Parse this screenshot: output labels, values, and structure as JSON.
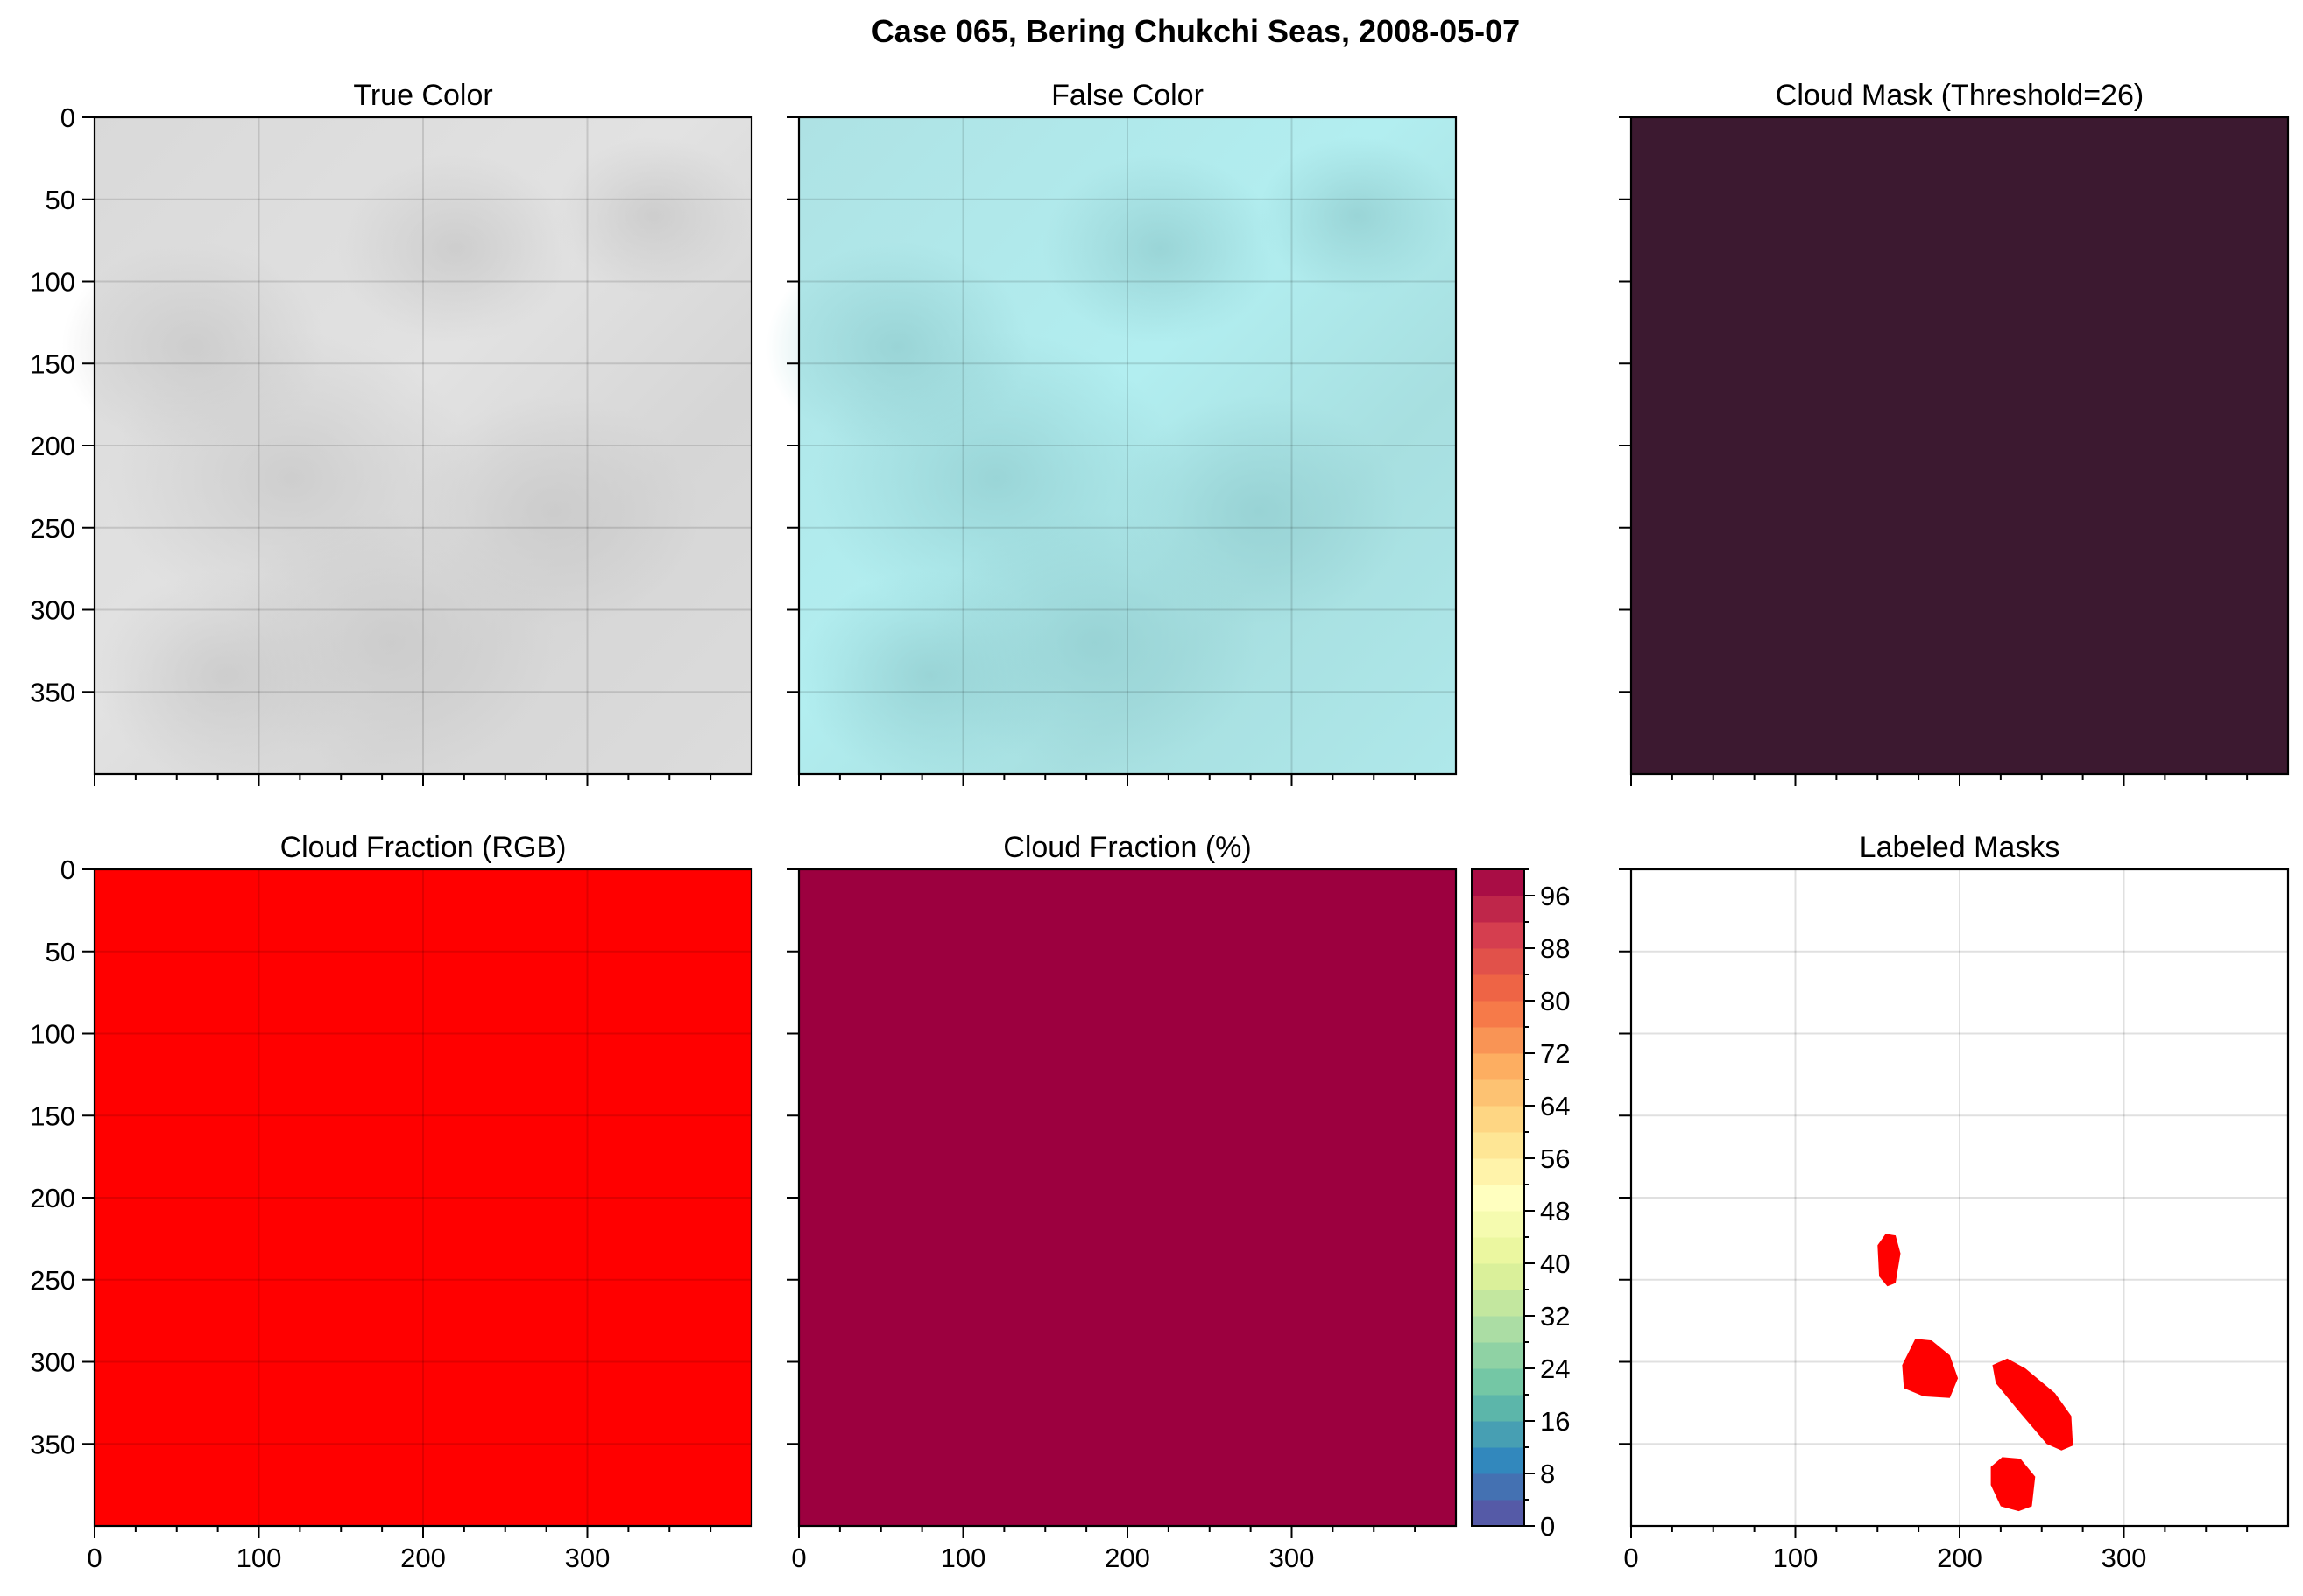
{
  "figure": {
    "suptitle": "Case 065, Bering Chukchi Seas, 2008-05-07"
  },
  "colors": {
    "cloud_mask_fill": "#3c1930",
    "cloud_fraction_rgb_fill": "#ff0000",
    "cloud_fraction_pct_fill": "#9c003f",
    "label_mask_fill": "#ff0000",
    "frame": "#000000"
  },
  "chart_data": [
    {
      "type": "heatmap",
      "panel": "true-color",
      "title": "True Color",
      "image": "satellite true color composite, light grey cloud cover",
      "xlim": [
        0,
        400
      ],
      "ylim": [
        400,
        0
      ],
      "xticks": [],
      "yticks": [
        0,
        50,
        100,
        150,
        200,
        250,
        300,
        350
      ],
      "grid": true
    },
    {
      "type": "heatmap",
      "panel": "false-color",
      "title": "False Color",
      "image": "satellite false color composite, pale cyan",
      "xlim": [
        0,
        400
      ],
      "ylim": [
        400,
        0
      ],
      "xticks": [],
      "yticks": [],
      "grid": true
    },
    {
      "type": "heatmap",
      "panel": "cloud-mask",
      "title": "Cloud Mask (Threshold=26)",
      "uniform_color": "#3c1930",
      "xlim": [
        0,
        400
      ],
      "ylim": [
        400,
        0
      ],
      "xticks": [],
      "yticks": [],
      "grid": false
    },
    {
      "type": "heatmap",
      "panel": "cloud-fraction-rgb",
      "title": "Cloud Fraction (RGB)",
      "uniform_color": "#ff0000",
      "xlim": [
        0,
        400
      ],
      "ylim": [
        400,
        0
      ],
      "xticks": [
        0,
        100,
        200,
        300
      ],
      "yticks": [
        0,
        50,
        100,
        150,
        200,
        250,
        300,
        350
      ],
      "grid": true
    },
    {
      "type": "heatmap",
      "panel": "cloud-fraction-pct",
      "title": "Cloud Fraction (%)",
      "uniform_value": 100,
      "xlim": [
        0,
        400
      ],
      "ylim": [
        400,
        0
      ],
      "xticks": [
        0,
        100,
        200,
        300
      ],
      "yticks": [],
      "grid": false,
      "colorbar": {
        "range": [
          0,
          100
        ],
        "levels": 25,
        "colormap": "Spectral_r",
        "ticks": [
          0,
          8,
          16,
          24,
          32,
          40,
          48,
          56,
          64,
          72,
          80,
          88,
          96
        ]
      }
    },
    {
      "type": "heatmap",
      "panel": "labeled-masks",
      "title": "Labeled Masks",
      "xlim": [
        0,
        400
      ],
      "ylim": [
        400,
        0
      ],
      "xticks": [
        0,
        100,
        200,
        300
      ],
      "yticks": [],
      "grid": true,
      "regions": [
        {
          "points": [
            [
              150,
              229
            ],
            [
              155,
              222
            ],
            [
              161,
              223
            ],
            [
              164,
              234
            ],
            [
              161,
              252
            ],
            [
              156,
              254
            ],
            [
              151,
              248
            ]
          ]
        },
        {
          "points": [
            [
              165,
              302
            ],
            [
              173,
              286
            ],
            [
              183,
              287
            ],
            [
              194,
              296
            ],
            [
              199,
              310
            ],
            [
              194,
              322
            ],
            [
              178,
              321
            ],
            [
              166,
              316
            ]
          ]
        },
        {
          "points": [
            [
              220,
              302
            ],
            [
              229,
              298
            ],
            [
              240,
              304
            ],
            [
              258,
              319
            ],
            [
              268,
              333
            ],
            [
              269,
              351
            ],
            [
              262,
              354
            ],
            [
              253,
              350
            ],
            [
              236,
              330
            ],
            [
              222,
              313
            ]
          ]
        },
        {
          "points": [
            [
              219,
              364
            ],
            [
              226,
              358
            ],
            [
              237,
              359
            ],
            [
              246,
              370
            ],
            [
              244,
              388
            ],
            [
              236,
              391
            ],
            [
              225,
              388
            ],
            [
              219,
              375
            ]
          ]
        }
      ]
    }
  ]
}
